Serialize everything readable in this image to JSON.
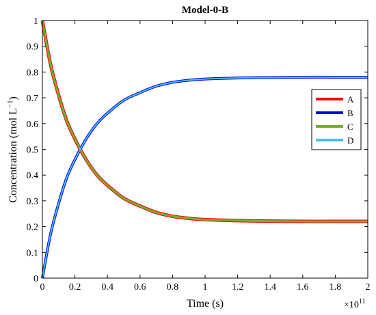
{
  "chart_data": {
    "type": "line",
    "title": "Model-0-B",
    "xlabel": "Time (s)",
    "ylabel_prefix": "Concentration (mol L",
    "ylabel_exponent": "−1",
    "ylabel_suffix": ")",
    "x_multiplier_base": "×10",
    "x_multiplier_exponent": "11",
    "xlim": [
      0,
      2
    ],
    "ylim": [
      0,
      1
    ],
    "x_ticks": [
      "0",
      "0.2",
      "0.4",
      "0.6",
      "0.8",
      "1",
      "1.2",
      "1.4",
      "1.6",
      "1.8",
      "2"
    ],
    "y_ticks": [
      "0",
      "0.1",
      "0.2",
      "0.3",
      "0.4",
      "0.5",
      "0.6",
      "0.7",
      "0.8",
      "0.9",
      "1"
    ],
    "grid": false,
    "legend_position": "right",
    "x": [
      0,
      0.05,
      0.1,
      0.15,
      0.2,
      0.25,
      0.3,
      0.35,
      0.4,
      0.5,
      0.6,
      0.7,
      0.8,
      0.9,
      1.0,
      1.2,
      1.4,
      1.6,
      1.8,
      2.0
    ],
    "series": [
      {
        "name": "A",
        "color": "#ff0000",
        "values": [
          1.0,
          0.83,
          0.71,
          0.61,
          0.54,
          0.48,
          0.43,
          0.39,
          0.36,
          0.31,
          0.28,
          0.255,
          0.24,
          0.232,
          0.227,
          0.223,
          0.221,
          0.22,
          0.22,
          0.22
        ]
      },
      {
        "name": "B",
        "color": "#0000dd",
        "values": [
          0.0,
          0.17,
          0.29,
          0.39,
          0.46,
          0.52,
          0.57,
          0.61,
          0.64,
          0.69,
          0.72,
          0.745,
          0.76,
          0.768,
          0.773,
          0.777,
          0.779,
          0.78,
          0.78,
          0.78
        ]
      },
      {
        "name": "C",
        "color": "#77ac30",
        "values": [
          1.0,
          0.83,
          0.71,
          0.61,
          0.54,
          0.48,
          0.43,
          0.39,
          0.36,
          0.31,
          0.28,
          0.255,
          0.24,
          0.232,
          0.227,
          0.223,
          0.221,
          0.22,
          0.22,
          0.22
        ]
      },
      {
        "name": "D",
        "color": "#4dbeee",
        "values": [
          0.0,
          0.17,
          0.29,
          0.39,
          0.46,
          0.52,
          0.57,
          0.61,
          0.64,
          0.69,
          0.72,
          0.745,
          0.76,
          0.768,
          0.773,
          0.777,
          0.779,
          0.78,
          0.78,
          0.78
        ]
      }
    ]
  }
}
